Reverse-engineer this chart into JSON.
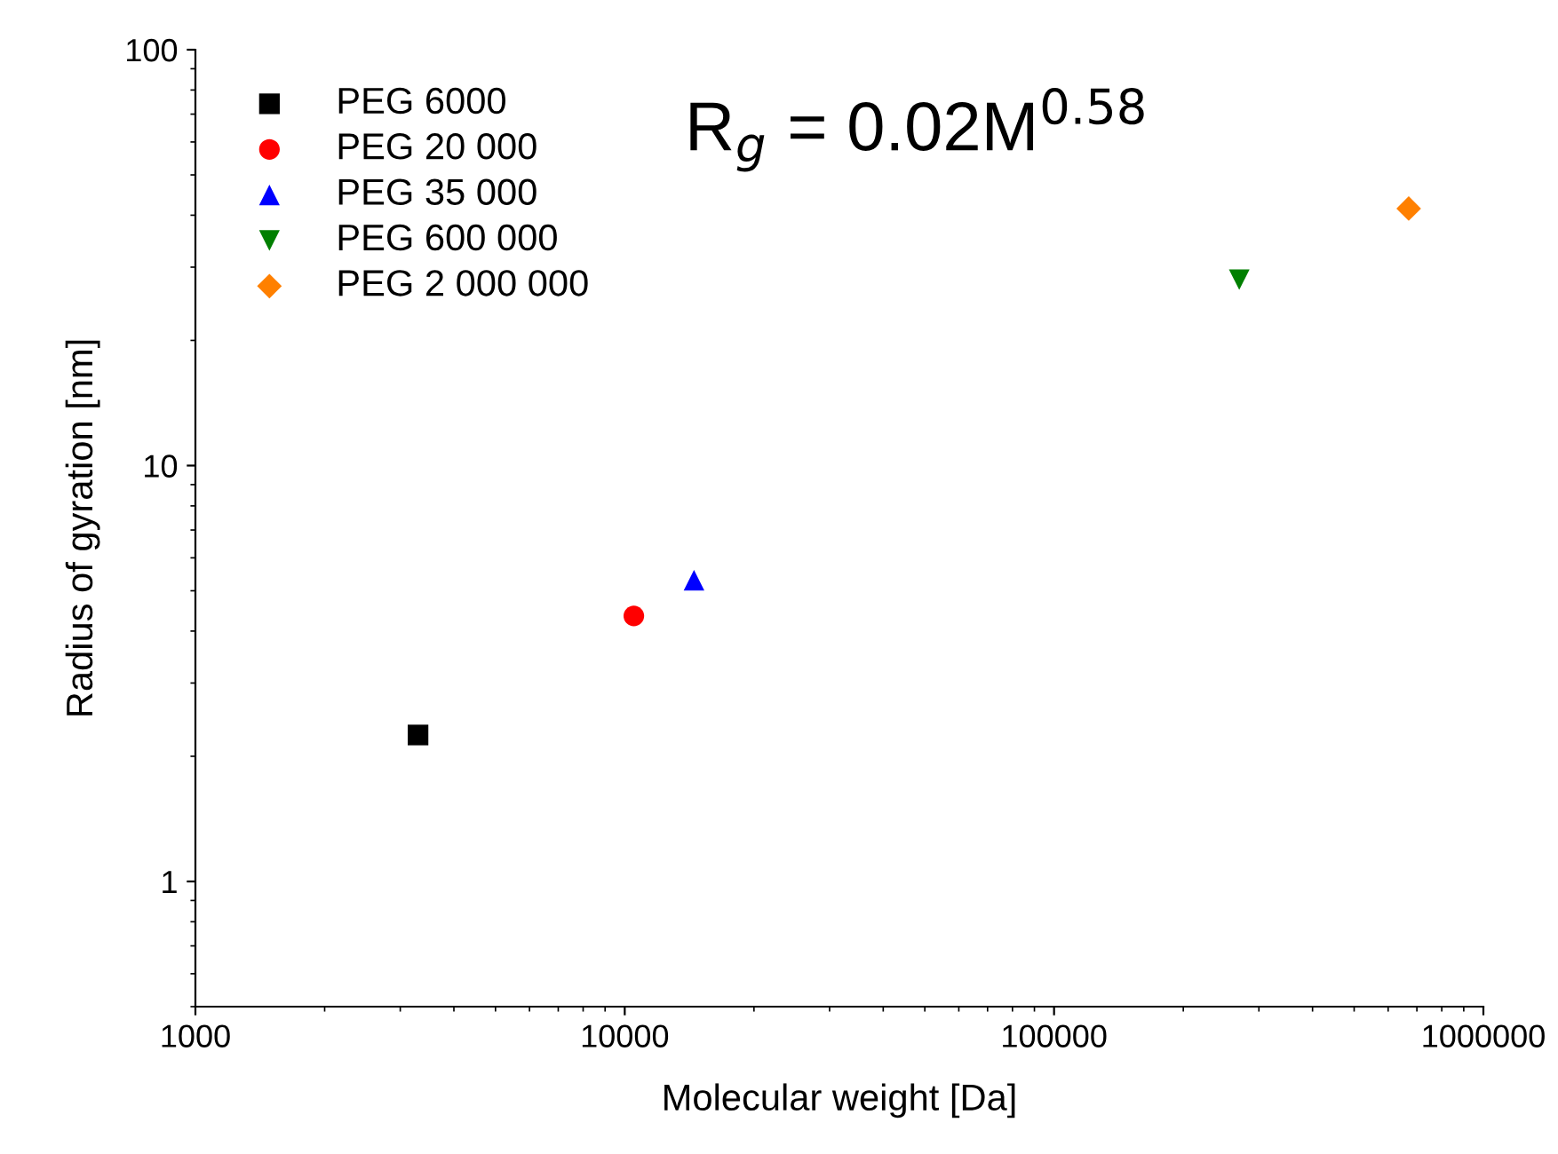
{
  "chart_data": {
    "type": "scatter",
    "xlabel": "Molecular weight [Da]",
    "ylabel": "Radius of gyration [nm]",
    "log": "xy",
    "xlim": [
      1000,
      1000000
    ],
    "ylim": [
      0.5,
      100
    ],
    "xticks": [
      1000,
      10000,
      100000,
      1000000
    ],
    "yticks": [
      1,
      10,
      100
    ],
    "grid": false,
    "legend": "top left",
    "annotations": [
      "R$_{g}$ = 0.02M$^{0.58}$"
    ],
    "series": [
      {
        "name": "PEG 6000",
        "color": "#000000",
        "marker": "square",
        "x": [
          3300
        ],
        "values": [
          2.25
        ]
      },
      {
        "name": "PEG 20 000",
        "color": "#ff0000",
        "marker": "circle",
        "x": [
          10500
        ],
        "values": [
          4.35
        ]
      },
      {
        "name": "PEG 35 000",
        "color": "#0000ff",
        "marker": "triangle",
        "x": [
          14500
        ],
        "values": [
          5.3
        ]
      },
      {
        "name": "PEG 600 000",
        "color": "#007f00",
        "marker": "triangle_down",
        "x": [
          270000
        ],
        "values": [
          28
        ]
      },
      {
        "name": "PEG 2 000 000",
        "color": "#ff8000",
        "marker": "diamond",
        "x": [
          670000
        ],
        "values": [
          41.5
        ]
      }
    ]
  }
}
